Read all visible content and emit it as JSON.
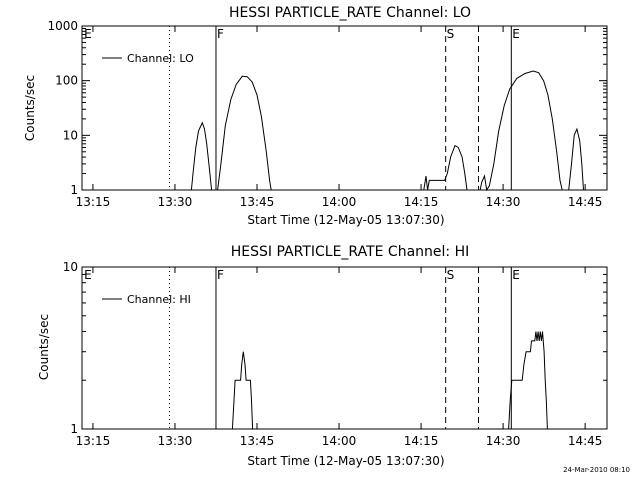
{
  "footer": {
    "timestamp": "24-Mar-2010 08:10"
  },
  "chart_data": [
    {
      "type": "line",
      "title": "HESSI PARTICLE_RATE Channel: LO",
      "xlabel": "Start Time (12-May-05 13:07:30)",
      "ylabel": "Counts/sec",
      "yscale": "log",
      "ylim": [
        1,
        1000
      ],
      "xlim_minutes": [
        13.0,
        109.0
      ],
      "xticks": [
        {
          "label": "13:15",
          "minute": 15
        },
        {
          "label": "13:30",
          "minute": 30
        },
        {
          "label": "13:45",
          "minute": 45
        },
        {
          "label": "14:00",
          "minute": 60
        },
        {
          "label": "14:15",
          "minute": 75
        },
        {
          "label": "14:30",
          "minute": 90
        },
        {
          "label": "14:45",
          "minute": 105
        }
      ],
      "yticks": [
        {
          "label": "1",
          "value": 1
        },
        {
          "label": "10",
          "value": 10
        },
        {
          "label": "100",
          "value": 100
        },
        {
          "label": "1000",
          "value": 1000
        }
      ],
      "legend": {
        "label": "Channel: LO",
        "placement": "top-left"
      },
      "markers": [
        {
          "label": "E",
          "minute": 13.2,
          "style": "none"
        },
        {
          "label": "",
          "minute": 29.0,
          "style": "dotted"
        },
        {
          "label": "F",
          "minute": 37.5,
          "style": "solid"
        },
        {
          "label": "S",
          "minute": 79.5,
          "style": "dashed"
        },
        {
          "label": "",
          "minute": 85.5,
          "style": "dashed"
        },
        {
          "label": "E",
          "minute": 91.5,
          "style": "solid"
        },
        {
          "label": "",
          "minute": 109.0,
          "style": "dotted"
        }
      ],
      "series": [
        {
          "name": "Channel: LO",
          "segments": [
            [
              [
                33.0,
                1
              ],
              [
                33.3,
                2
              ],
              [
                33.8,
                6
              ],
              [
                34.3,
                12
              ],
              [
                35.0,
                17
              ],
              [
                35.4,
                13
              ],
              [
                35.8,
                7
              ],
              [
                36.2,
                3
              ],
              [
                36.7,
                1
              ]
            ],
            [
              [
                37.8,
                1
              ],
              [
                38.4,
                3
              ],
              [
                39.2,
                15
              ],
              [
                40.2,
                45
              ],
              [
                41.2,
                85
              ],
              [
                42.3,
                120
              ],
              [
                43.2,
                118
              ],
              [
                44.1,
                95
              ],
              [
                45.0,
                55
              ],
              [
                45.8,
                22
              ],
              [
                46.7,
                5
              ],
              [
                47.3,
                1.5
              ],
              [
                47.6,
                1
              ]
            ],
            [
              [
                75.5,
                1
              ],
              [
                75.9,
                1.8
              ],
              [
                76.2,
                1
              ],
              [
                76.5,
                1.5
              ],
              [
                78.0,
                1.5
              ],
              [
                79.3,
                1.5
              ],
              [
                79.8,
                2
              ],
              [
                80.4,
                4
              ],
              [
                81.2,
                6.5
              ],
              [
                81.8,
                6
              ],
              [
                82.5,
                4
              ],
              [
                83.0,
                2
              ],
              [
                83.4,
                1
              ]
            ],
            [
              [
                85.8,
                1
              ],
              [
                86.1,
                1.4
              ],
              [
                86.6,
                1.8
              ],
              [
                87.0,
                1
              ],
              [
                87.5,
                1.2
              ],
              [
                88.3,
                3
              ],
              [
                89.2,
                12
              ],
              [
                90.2,
                35
              ],
              [
                91.2,
                70
              ],
              [
                92.5,
                110
              ],
              [
                94.0,
                135
              ],
              [
                95.5,
                150
              ],
              [
                96.5,
                140
              ],
              [
                97.4,
                100
              ],
              [
                98.2,
                55
              ],
              [
                99.0,
                20
              ],
              [
                99.8,
                5
              ],
              [
                100.4,
                1.5
              ],
              [
                100.8,
                1
              ]
            ],
            [
              [
                102.0,
                1
              ],
              [
                102.5,
                3
              ],
              [
                103.0,
                10
              ],
              [
                103.5,
                13
              ],
              [
                104.0,
                8
              ],
              [
                104.4,
                3
              ],
              [
                104.7,
                1
              ]
            ]
          ]
        }
      ]
    },
    {
      "type": "line",
      "title": "HESSI PARTICLE_RATE Channel: HI",
      "xlabel": "Start Time (12-May-05 13:07:30)",
      "ylabel": "Counts/sec",
      "yscale": "log",
      "ylim": [
        1,
        10
      ],
      "xlim_minutes": [
        13.0,
        109.0
      ],
      "xticks": [
        {
          "label": "13:15",
          "minute": 15
        },
        {
          "label": "13:30",
          "minute": 30
        },
        {
          "label": "13:45",
          "minute": 45
        },
        {
          "label": "14:00",
          "minute": 60
        },
        {
          "label": "14:15",
          "minute": 75
        },
        {
          "label": "14:30",
          "minute": 90
        },
        {
          "label": "14:45",
          "minute": 105
        }
      ],
      "yticks": [
        {
          "label": "1",
          "value": 1
        },
        {
          "label": "10",
          "value": 10
        }
      ],
      "legend": {
        "label": "Channel: HI",
        "placement": "top-left"
      },
      "markers": [
        {
          "label": "E",
          "minute": 13.2,
          "style": "none"
        },
        {
          "label": "",
          "minute": 29.0,
          "style": "dotted"
        },
        {
          "label": "F",
          "minute": 37.5,
          "style": "solid"
        },
        {
          "label": "S",
          "minute": 79.5,
          "style": "dashed"
        },
        {
          "label": "",
          "minute": 85.5,
          "style": "dashed"
        },
        {
          "label": "E",
          "minute": 91.5,
          "style": "solid"
        },
        {
          "label": "",
          "minute": 109.0,
          "style": "dotted"
        }
      ],
      "series": [
        {
          "name": "Channel: HI",
          "segments": [
            [
              [
                40.5,
                1
              ],
              [
                40.8,
                1.5
              ],
              [
                41.0,
                2
              ],
              [
                42.0,
                2
              ],
              [
                42.2,
                2.5
              ],
              [
                42.5,
                3
              ],
              [
                42.8,
                2.5
              ],
              [
                43.0,
                2
              ],
              [
                43.8,
                2
              ],
              [
                44.0,
                1.5
              ],
              [
                44.2,
                1
              ]
            ],
            [
              [
                91.0,
                1
              ],
              [
                91.3,
                1.5
              ],
              [
                91.6,
                2
              ],
              [
                93.5,
                2
              ],
              [
                93.8,
                2.5
              ],
              [
                94.2,
                3
              ],
              [
                95.0,
                3
              ],
              [
                95.2,
                3.5
              ],
              [
                95.8,
                3.5
              ],
              [
                96.0,
                4
              ],
              [
                96.2,
                3.5
              ],
              [
                96.4,
                4
              ],
              [
                96.6,
                3.5
              ],
              [
                96.8,
                4
              ],
              [
                97.0,
                3.5
              ],
              [
                97.2,
                4
              ],
              [
                97.5,
                3
              ],
              [
                97.7,
                2
              ],
              [
                97.9,
                1.5
              ],
              [
                98.1,
                1
              ]
            ]
          ]
        }
      ]
    }
  ]
}
